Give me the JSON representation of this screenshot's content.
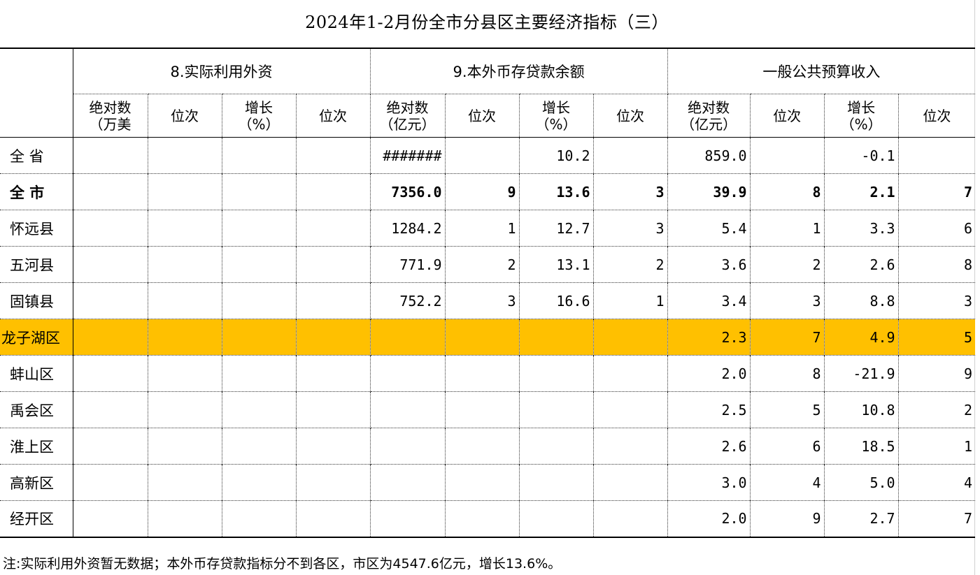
{
  "title": "2024年1-2月份全市分县区主要经济指标（三）",
  "groups": [
    "8.实际利用外资",
    "9.本外币存贷款余额",
    "一般公共预算收入"
  ],
  "subheaders": [
    [
      "绝对数",
      "（万美"
    ],
    [
      "位次"
    ],
    [
      "增长",
      "（%）"
    ],
    [
      "位次"
    ],
    [
      "绝对数",
      "（亿元）"
    ],
    [
      "位次"
    ],
    [
      "增长",
      "（%）"
    ],
    [
      "位次"
    ],
    [
      "绝对数",
      "（亿元）"
    ],
    [
      "位次"
    ],
    [
      "增长",
      "（%）"
    ],
    [
      "位次"
    ]
  ],
  "rows": [
    {
      "name": "全 省",
      "cells": [
        "",
        "",
        "",
        "",
        "#######",
        "",
        "10.2",
        "",
        "859.0",
        "",
        "-0.1",
        ""
      ]
    },
    {
      "name": "全  市",
      "cells": [
        "",
        "",
        "",
        "",
        "7356.0",
        "9",
        "13.6",
        "3",
        "39.9",
        "8",
        "2.1",
        "7"
      ]
    },
    {
      "name": "怀远县",
      "cells": [
        "",
        "",
        "",
        "",
        "1284.2",
        "1",
        "12.7",
        "3",
        "5.4",
        "1",
        "3.3",
        "6"
      ]
    },
    {
      "name": "五河县",
      "cells": [
        "",
        "",
        "",
        "",
        "771.9",
        "2",
        "13.1",
        "2",
        "3.6",
        "2",
        "2.6",
        "8"
      ]
    },
    {
      "name": "固镇县",
      "cells": [
        "",
        "",
        "",
        "",
        "752.2",
        "3",
        "16.6",
        "1",
        "3.4",
        "3",
        "8.8",
        "3"
      ]
    },
    {
      "name": "龙子湖区",
      "cells": [
        "",
        "",
        "",
        "",
        "",
        "",
        "",
        "",
        "2.3",
        "7",
        "4.9",
        "5"
      ]
    },
    {
      "name": "蚌山区",
      "cells": [
        "",
        "",
        "",
        "",
        "",
        "",
        "",
        "",
        "2.0",
        "8",
        "-21.9",
        "9"
      ]
    },
    {
      "name": "禹会区",
      "cells": [
        "",
        "",
        "",
        "",
        "",
        "",
        "",
        "",
        "2.5",
        "5",
        "10.8",
        "2"
      ]
    },
    {
      "name": "淮上区",
      "cells": [
        "",
        "",
        "",
        "",
        "",
        "",
        "",
        "",
        "2.6",
        "6",
        "18.5",
        "1"
      ]
    },
    {
      "name": "高新区",
      "cells": [
        "",
        "",
        "",
        "",
        "",
        "",
        "",
        "",
        "3.0",
        "4",
        "5.0",
        "4"
      ]
    },
    {
      "name": "经开区",
      "cells": [
        "",
        "",
        "",
        "",
        "",
        "",
        "",
        "",
        "2.0",
        "9",
        "2.7",
        "7"
      ]
    }
  ],
  "highlight_color": "#ffc000",
  "note": "注:实际利用外资暂无数据；本外币存贷款指标分不到各区，市区为4547.6亿元，增长13.6%。"
}
